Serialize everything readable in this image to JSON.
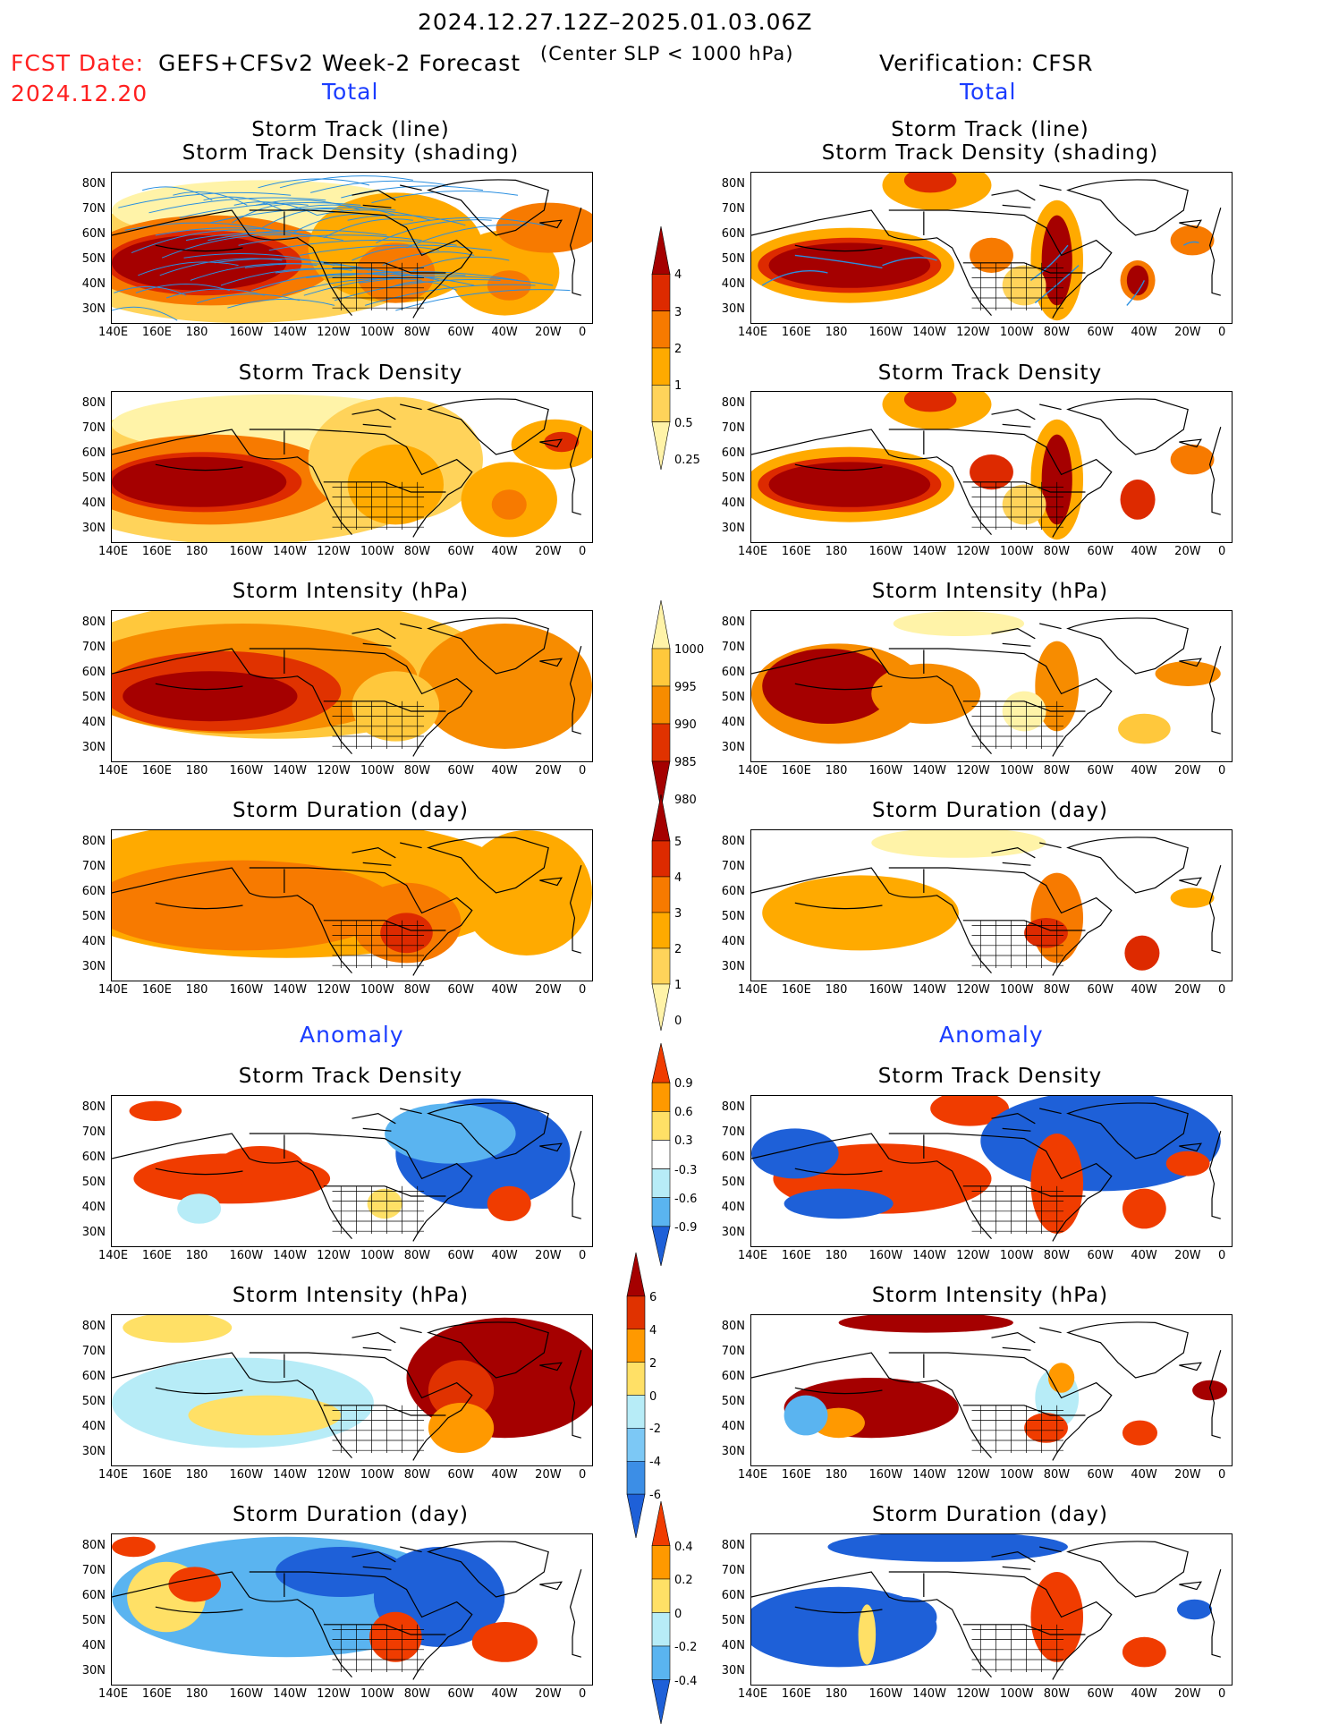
{
  "header": {
    "period": "2024.12.27.12Z–2025.01.03.06Z",
    "fcst_label": "FCST Date:",
    "fcst_model": "GEFS+CFSv2 Week-2 Forecast",
    "fcst_date": "2024.12.20",
    "criterion": "(Center SLP < 1000 hPa)",
    "verification": "Verification: CFSR"
  },
  "sections": {
    "total": "Total",
    "anomaly": "Anomaly"
  },
  "panel_titles": {
    "track_line": "Storm Track (line)",
    "track_density_shading": "Storm Track Density (shading)",
    "track_density": "Storm Track Density",
    "intensity": "Storm Intensity (hPa)",
    "duration": "Storm Duration (day)"
  },
  "axes": {
    "lat_labels": [
      "80N",
      "70N",
      "60N",
      "50N",
      "40N",
      "30N"
    ],
    "lon_labels": [
      "140E",
      "160E",
      "180",
      "160W",
      "140W",
      "120W",
      "100W",
      "80W",
      "60W",
      "40W",
      "20W",
      "0"
    ]
  },
  "colorbars": {
    "density_total": {
      "labels": [
        "4",
        "3",
        "2",
        "1",
        "0.5",
        "0.25"
      ],
      "colors": [
        "#a50000",
        "#dd2a00",
        "#f77a00",
        "#ffaa00",
        "#ffd35a",
        "#fff3a8"
      ]
    },
    "intensity_total": {
      "labels": [
        "1000",
        "995",
        "990",
        "985",
        "980"
      ],
      "colors": [
        "#fff3a8",
        "#ffc83c",
        "#f78c00",
        "#e03200",
        "#a50000"
      ]
    },
    "duration_total": {
      "labels": [
        "5",
        "4",
        "3",
        "2",
        "1",
        "0"
      ],
      "colors": [
        "#a50000",
        "#dd2a00",
        "#f77a00",
        "#ffaa00",
        "#ffd35a",
        "#fff3a8"
      ]
    },
    "density_anom": {
      "labels": [
        "0.9",
        "0.6",
        "0.3",
        "-0.3",
        "-0.6",
        "-0.9"
      ],
      "colors": [
        "#f03c00",
        "#ff9900",
        "#ffe066",
        "#ffffff",
        "#b7ecf7",
        "#5ab4f0",
        "#1e60d8"
      ]
    },
    "intensity_anom": {
      "labels": [
        "6",
        "4",
        "2",
        "0",
        "-2",
        "-4",
        "-6"
      ],
      "colors": [
        "#a50000",
        "#e03200",
        "#ff9900",
        "#ffe066",
        "#b7ecf7",
        "#7cc8f5",
        "#3c8ee6",
        "#1e60d8"
      ]
    },
    "duration_anom": {
      "labels": [
        "0.4",
        "0.2",
        "0",
        "-0.2",
        "-0.4"
      ],
      "colors": [
        "#f03c00",
        "#ff9900",
        "#ffe066",
        "#b7ecf7",
        "#5ab4f0",
        "#1e60d8"
      ]
    }
  },
  "chart_data": [
    {
      "type": "heatmap",
      "title": "Storm Track (line) / Storm Track Density (shading)",
      "source": "GEFS+CFSv2",
      "section": "Total",
      "lat_range": [
        25,
        85
      ],
      "lon_range": [
        140,
        360
      ]
    },
    {
      "type": "heatmap",
      "title": "Storm Track (line) / Storm Track Density (shading)",
      "source": "CFSR",
      "section": "Total",
      "lat_range": [
        25,
        85
      ],
      "lon_range": [
        140,
        360
      ]
    },
    {
      "type": "heatmap",
      "title": "Storm Track Density",
      "source": "GEFS+CFSv2",
      "section": "Total"
    },
    {
      "type": "heatmap",
      "title": "Storm Track Density",
      "source": "CFSR",
      "section": "Total"
    },
    {
      "type": "heatmap",
      "title": "Storm Intensity (hPa)",
      "source": "GEFS+CFSv2",
      "section": "Total"
    },
    {
      "type": "heatmap",
      "title": "Storm Intensity (hPa)",
      "source": "CFSR",
      "section": "Total"
    },
    {
      "type": "heatmap",
      "title": "Storm Duration (day)",
      "source": "GEFS+CFSv2",
      "section": "Total"
    },
    {
      "type": "heatmap",
      "title": "Storm Duration (day)",
      "source": "CFSR",
      "section": "Total"
    },
    {
      "type": "heatmap",
      "title": "Storm Track Density",
      "source": "GEFS+CFSv2",
      "section": "Anomaly"
    },
    {
      "type": "heatmap",
      "title": "Storm Track Density",
      "source": "CFSR",
      "section": "Anomaly"
    },
    {
      "type": "heatmap",
      "title": "Storm Intensity (hPa)",
      "source": "GEFS+CFSv2",
      "section": "Anomaly"
    },
    {
      "type": "heatmap",
      "title": "Storm Intensity (hPa)",
      "source": "CFSR",
      "section": "Anomaly"
    },
    {
      "type": "heatmap",
      "title": "Storm Duration (day)",
      "source": "GEFS+CFSv2",
      "section": "Anomaly"
    },
    {
      "type": "heatmap",
      "title": "Storm Duration (day)",
      "source": "CFSR",
      "section": "Anomaly"
    }
  ]
}
